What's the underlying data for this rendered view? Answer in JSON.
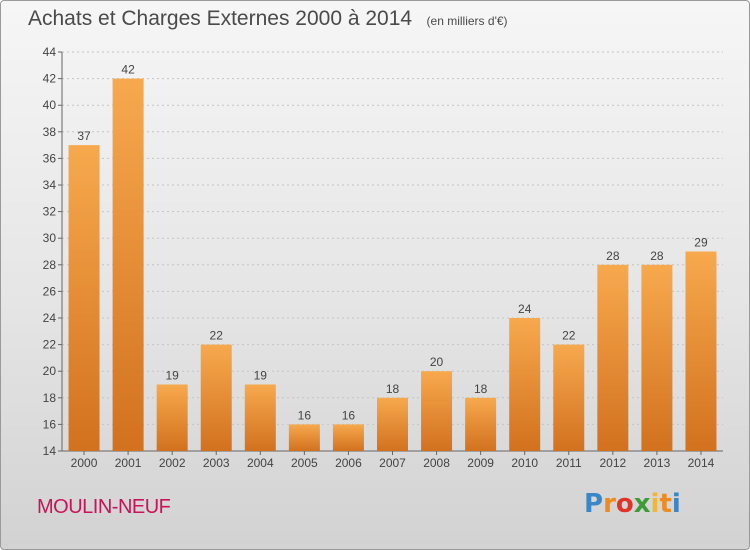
{
  "title": "Achats et Charges Externes 2000 à 2014",
  "unit": "(en milliers d'€)",
  "commune": "MOULIN-NEUF",
  "brand": "Proxiti",
  "colors": {
    "bar_light": "#f7a94e",
    "bar_dark": "#d2711e",
    "text": "#4a4a4a",
    "commune": "#c8145a"
  },
  "chart_data": {
    "type": "bar",
    "title": "Achats et Charges Externes 2000 à 2014",
    "categories": [
      "2000",
      "2001",
      "2002",
      "2003",
      "2004",
      "2005",
      "2006",
      "2007",
      "2008",
      "2009",
      "2010",
      "2011",
      "2012",
      "2013",
      "2014"
    ],
    "values": [
      37,
      42,
      19,
      22,
      19,
      16,
      16,
      18,
      20,
      18,
      24,
      22,
      28,
      28,
      29
    ],
    "ylim": [
      14,
      44
    ],
    "yticks": [
      14,
      16,
      18,
      20,
      22,
      24,
      26,
      28,
      30,
      32,
      34,
      36,
      38,
      40,
      42,
      44
    ],
    "grid": true,
    "data_labels": true
  }
}
